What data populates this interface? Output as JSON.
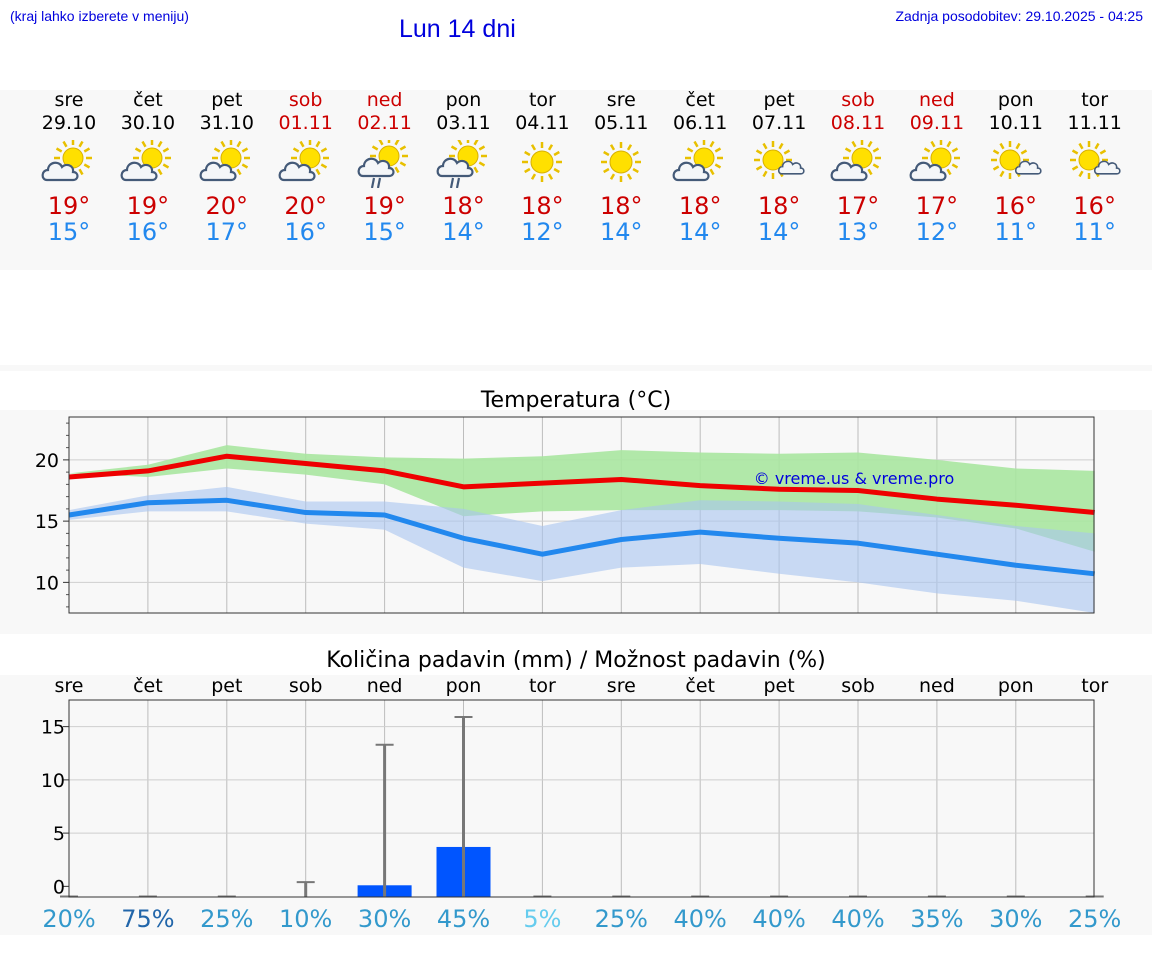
{
  "header": {
    "hint": "(kraj lahko izberete v meniju)",
    "title": "Lun 14 dni",
    "updated": "Zadnja posodobitev: 29.10.2025 - 04:25"
  },
  "forecast": {
    "days": [
      {
        "name": "sre",
        "date": "29.10",
        "weekend": false,
        "icon": "sun-cloud-icon",
        "max": "19°",
        "min": "15°"
      },
      {
        "name": "čet",
        "date": "30.10",
        "weekend": false,
        "icon": "sun-cloud-icon",
        "max": "19°",
        "min": "16°"
      },
      {
        "name": "pet",
        "date": "31.10",
        "weekend": false,
        "icon": "sun-cloud-icon",
        "max": "20°",
        "min": "17°"
      },
      {
        "name": "sob",
        "date": "01.11",
        "weekend": true,
        "icon": "sun-cloud-icon",
        "max": "20°",
        "min": "16°"
      },
      {
        "name": "ned",
        "date": "02.11",
        "weekend": true,
        "icon": "sun-cloud-rain-icon",
        "max": "19°",
        "min": "15°"
      },
      {
        "name": "pon",
        "date": "03.11",
        "weekend": false,
        "icon": "sun-cloud-rain-icon",
        "max": "18°",
        "min": "14°"
      },
      {
        "name": "tor",
        "date": "04.11",
        "weekend": false,
        "icon": "sun-icon",
        "max": "18°",
        "min": "12°"
      },
      {
        "name": "sre",
        "date": "05.11",
        "weekend": false,
        "icon": "sun-icon",
        "max": "18°",
        "min": "14°"
      },
      {
        "name": "čet",
        "date": "06.11",
        "weekend": false,
        "icon": "sun-cloud-icon",
        "max": "18°",
        "min": "14°"
      },
      {
        "name": "pet",
        "date": "07.11",
        "weekend": false,
        "icon": "sun-small-cloud-icon",
        "max": "18°",
        "min": "14°"
      },
      {
        "name": "sob",
        "date": "08.11",
        "weekend": true,
        "icon": "sun-cloud-icon",
        "max": "17°",
        "min": "13°"
      },
      {
        "name": "ned",
        "date": "09.11",
        "weekend": true,
        "icon": "sun-cloud-icon",
        "max": "17°",
        "min": "12°"
      },
      {
        "name": "pon",
        "date": "10.11",
        "weekend": false,
        "icon": "sun-small-cloud-icon",
        "max": "16°",
        "min": "11°"
      },
      {
        "name": "tor",
        "date": "11.11",
        "weekend": false,
        "icon": "sun-small-cloud-icon",
        "max": "16°",
        "min": "11°"
      }
    ]
  },
  "colors": {
    "accent": "#0000dd",
    "max_line": "#ee0000",
    "min_line": "#2288ee",
    "max_band": "#a8e6a0",
    "min_band": "#a8c4f0",
    "overlap_band": "#80c4a8",
    "rain_bar": "#0055ff",
    "whisker": "#777777"
  },
  "chart_data": [
    {
      "type": "line",
      "title": "Temperatura (°C)",
      "ylim": [
        7.5,
        23.5
      ],
      "yticks": [
        10,
        15,
        20
      ],
      "ytick_labels": [
        "10",
        "15",
        "20"
      ],
      "watermark": "© vreme.us & vreme.pro",
      "series": [
        {
          "name": "max",
          "values": [
            18.6,
            19.1,
            20.3,
            19.7,
            19.1,
            17.8,
            18.1,
            18.4,
            17.9,
            17.6,
            17.5,
            16.8,
            16.3,
            15.7
          ],
          "band_low": [
            18.9,
            18.6,
            19.3,
            18.8,
            18.0,
            15.4,
            15.8,
            15.9,
            15.9,
            15.9,
            15.8,
            15.3,
            14.4,
            12.5
          ],
          "band_high": [
            18.9,
            19.6,
            21.2,
            20.5,
            20.2,
            20.1,
            20.3,
            20.8,
            20.6,
            20.5,
            20.6,
            20.0,
            19.3,
            19.1
          ]
        },
        {
          "name": "min",
          "values": [
            15.5,
            16.5,
            16.7,
            15.7,
            15.5,
            13.6,
            12.3,
            13.5,
            14.1,
            13.6,
            13.2,
            12.3,
            11.4,
            10.7
          ],
          "band_low": [
            15.1,
            15.8,
            15.8,
            14.8,
            14.3,
            11.2,
            10.1,
            11.2,
            11.5,
            10.7,
            10.0,
            9.1,
            8.5,
            7.5
          ],
          "band_high": [
            15.9,
            17.1,
            17.8,
            16.6,
            16.6,
            16.0,
            14.6,
            15.9,
            16.7,
            16.6,
            16.4,
            15.5,
            14.6,
            14.0
          ]
        }
      ]
    },
    {
      "type": "bar",
      "title": "Količina padavin (mm) / Možnost padavin (%)",
      "categories": [
        "sre",
        "čet",
        "pet",
        "sob",
        "ned",
        "pon",
        "tor",
        "sre",
        "čet",
        "pet",
        "sob",
        "ned",
        "pon",
        "tor"
      ],
      "values": [
        0,
        0,
        0,
        0,
        0.1,
        3.7,
        0,
        0,
        0,
        0,
        0,
        0,
        0,
        0
      ],
      "whisker_max": [
        0,
        0,
        0,
        0.4,
        13.3,
        15.9,
        0,
        0,
        0,
        0,
        0,
        0,
        0,
        0
      ],
      "ylim": [
        -1,
        17.5
      ],
      "yticks": [
        0,
        5,
        10,
        15
      ],
      "ytick_labels": [
        "0",
        "5",
        "10",
        "15"
      ],
      "probabilities": [
        "20%",
        "75%",
        "25%",
        "10%",
        "30%",
        "45%",
        "5%",
        "25%",
        "40%",
        "40%",
        "40%",
        "35%",
        "30%",
        "25%"
      ],
      "probability_colors": [
        "#3399cc",
        "#2266aa",
        "#3399cc",
        "#3399cc",
        "#3399cc",
        "#3399cc",
        "#66ccee",
        "#3399cc",
        "#3399cc",
        "#3399cc",
        "#3399cc",
        "#3399cc",
        "#3399cc",
        "#3399cc"
      ]
    }
  ]
}
